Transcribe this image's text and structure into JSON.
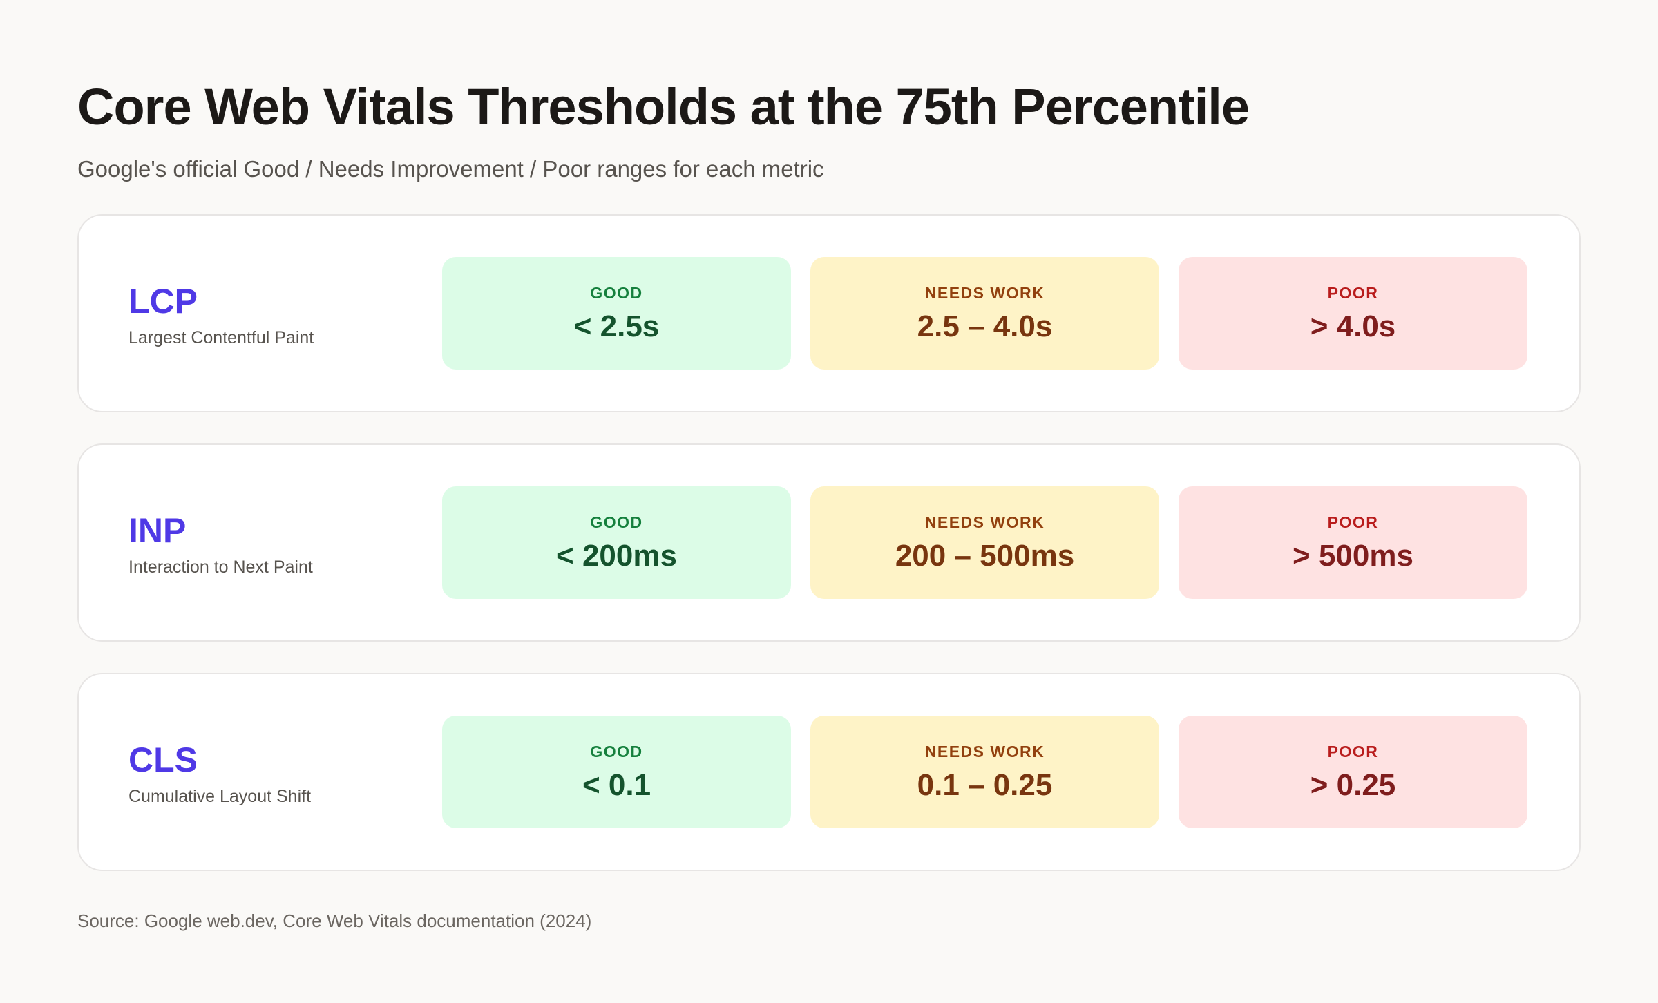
{
  "header": {
    "title": "Core Web Vitals Thresholds at the 75th Percentile",
    "subtitle": "Google's official Good / Needs Improvement / Poor ranges for each metric"
  },
  "labels": {
    "good": "GOOD",
    "needs_work": "NEEDS WORK",
    "poor": "POOR"
  },
  "metrics": [
    {
      "abbr": "LCP",
      "name": "Largest Contentful Paint",
      "good": "< 2.5s",
      "needs_work": "2.5 – 4.0s",
      "poor": "> 4.0s"
    },
    {
      "abbr": "INP",
      "name": "Interaction to Next Paint",
      "good": "< 200ms",
      "needs_work": "200 – 500ms",
      "poor": "> 500ms"
    },
    {
      "abbr": "CLS",
      "name": "Cumulative Layout Shift",
      "good": "< 0.1",
      "needs_work": "0.1 – 0.25",
      "poor": "> 0.25"
    }
  ],
  "footer": {
    "source": "Source: Google web.dev, Core Web Vitals documentation (2024)"
  },
  "colors": {
    "accent": "#4f39e6",
    "good_bg": "#dcfce7",
    "good_text": "#14532d",
    "needs_work_bg": "#fef3c7",
    "needs_work_text": "#78350f",
    "poor_bg": "#fee2e2",
    "poor_text": "#7f1d1d"
  }
}
